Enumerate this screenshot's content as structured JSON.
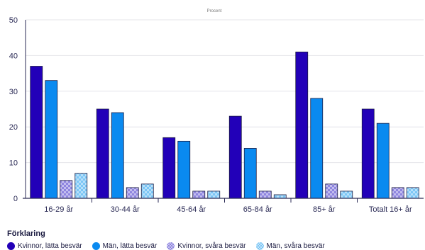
{
  "chart_data": {
    "type": "bar",
    "title": "",
    "unit_label": "Procent",
    "xlabel": "",
    "ylabel": "",
    "ylim": [
      0,
      50
    ],
    "yticks": [
      0,
      10,
      20,
      30,
      40,
      50
    ],
    "grid": true,
    "legend_position": "bottom-left",
    "categories": [
      "16-29 år",
      "30-44 år",
      "45-64 år",
      "65-84 år",
      "85+ år",
      "Totalt 16+ år"
    ],
    "series": [
      {
        "name": "Kvinnor, lätta besvär",
        "values": [
          37,
          25,
          17,
          23,
          41,
          25
        ],
        "color": "#2200b8",
        "pattern": "solid"
      },
      {
        "name": "Män, lätta besvär",
        "values": [
          33,
          24,
          16,
          14,
          28,
          21
        ],
        "color": "#0a8af0",
        "pattern": "solid"
      },
      {
        "name": "Kvinnor, svåra besvär",
        "values": [
          5,
          3,
          2,
          2,
          4,
          3
        ],
        "color": "#8f86e0",
        "pattern": "checker"
      },
      {
        "name": "Män, svåra besvär",
        "values": [
          7,
          4,
          2,
          1,
          2,
          3
        ],
        "color": "#7cc6f5",
        "pattern": "checker"
      }
    ]
  },
  "legend": {
    "title": "Förklaring"
  }
}
